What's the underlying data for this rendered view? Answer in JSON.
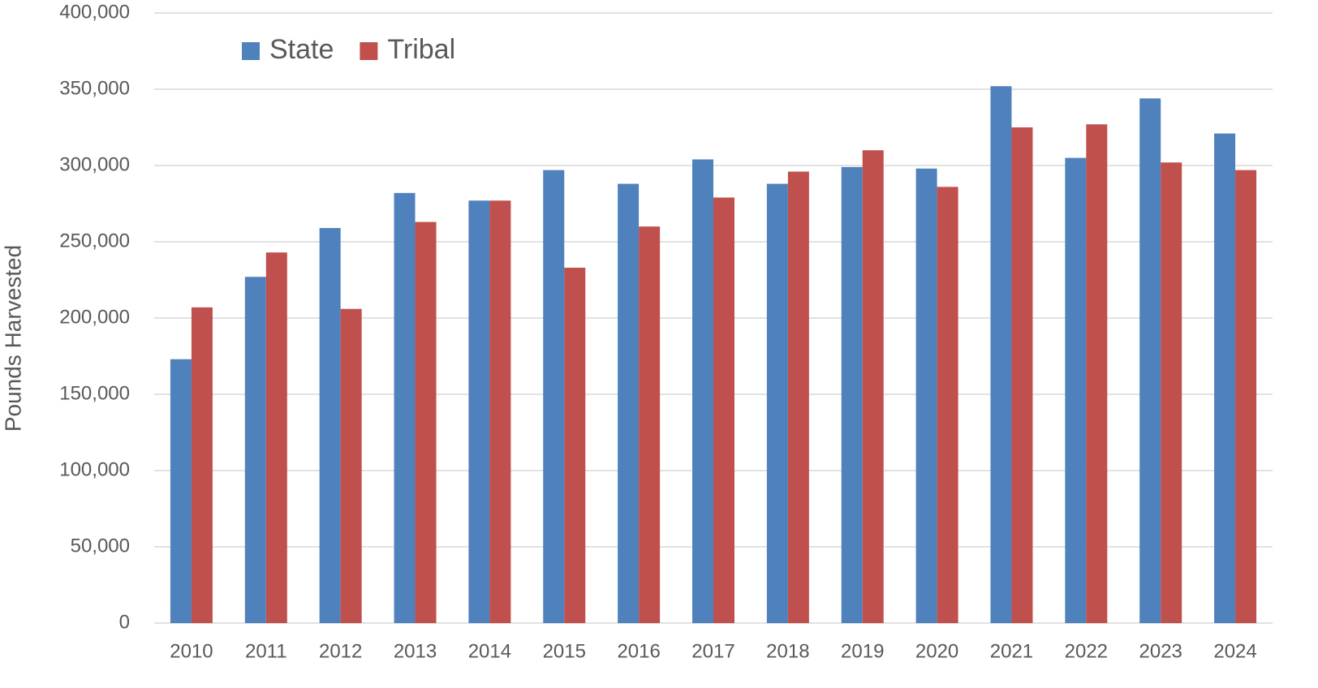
{
  "chart_data": {
    "type": "bar",
    "y_label": "Pounds Harvested",
    "categories": [
      "2010",
      "2011",
      "2012",
      "2013",
      "2014",
      "2015",
      "2016",
      "2017",
      "2018",
      "2019",
      "2020",
      "2021",
      "2022",
      "2023",
      "2024"
    ],
    "series": [
      {
        "name": "State",
        "color": "#4f81bd",
        "values": [
          173000,
          227000,
          259000,
          282000,
          277000,
          297000,
          288000,
          304000,
          288000,
          299000,
          298000,
          352000,
          305000,
          344000,
          321000
        ]
      },
      {
        "name": "Tribal",
        "color": "#c0504d",
        "values": [
          207000,
          243000,
          206000,
          263000,
          277000,
          233000,
          260000,
          279000,
          296000,
          310000,
          286000,
          325000,
          327000,
          302000,
          297000
        ]
      }
    ],
    "ylim": [
      0,
      400000
    ],
    "yticks": [
      0,
      {
        "value": 50000,
        "label": "50,000"
      },
      {
        "value": 100000,
        "label": "100,000"
      },
      {
        "value": 150000,
        "label": "150,000"
      },
      {
        "value": 200000,
        "label": "200,000"
      },
      {
        "value": 250000,
        "label": "250,000"
      },
      {
        "value": 300000,
        "label": "300,000"
      },
      {
        "value": 350000,
        "label": "350,000"
      },
      {
        "value": 400000,
        "label": "400,000"
      }
    ],
    "grid": true,
    "legend": "top-left"
  }
}
